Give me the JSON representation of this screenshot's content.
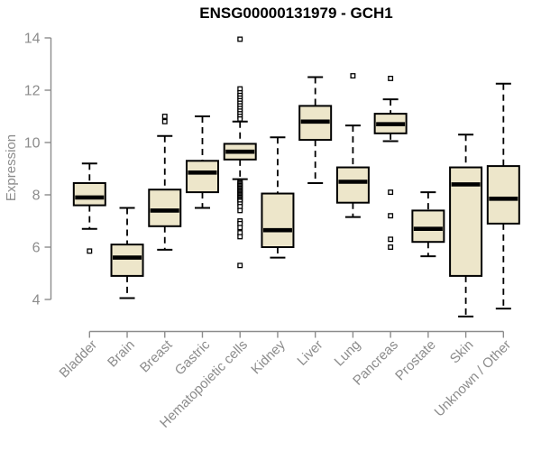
{
  "chart_data": {
    "type": "boxplot",
    "title": "ENSG00000131979 - GCH1",
    "ylabel": "Expression",
    "xlabel": "",
    "ylim": [
      4,
      14
    ],
    "yticks": [
      4,
      6,
      8,
      10,
      12,
      14
    ],
    "grid": false,
    "legend": null,
    "categories": [
      "Bladder",
      "Brain",
      "Breast",
      "Gastric",
      "Hematopoietic cells",
      "Kidney",
      "Liver",
      "Lung",
      "Pancreas",
      "Prostate",
      "Skin",
      "Unknown / Other"
    ],
    "boxes": [
      {
        "category": "Bladder",
        "low": 6.7,
        "q1": 7.6,
        "median": 7.9,
        "q3": 8.45,
        "high": 9.2,
        "outliers": [
          5.85
        ]
      },
      {
        "category": "Brain",
        "low": 4.05,
        "q1": 4.9,
        "median": 5.6,
        "q3": 6.1,
        "high": 7.5,
        "outliers": []
      },
      {
        "category": "Breast",
        "low": 5.9,
        "q1": 6.8,
        "median": 7.4,
        "q3": 8.2,
        "high": 10.25,
        "outliers": [
          11.0,
          10.8
        ]
      },
      {
        "category": "Gastric",
        "low": 7.5,
        "q1": 8.1,
        "median": 8.85,
        "q3": 9.3,
        "high": 11.0,
        "outliers": []
      },
      {
        "category": "Hematopoietic cells",
        "low": 8.6,
        "q1": 9.35,
        "median": 9.65,
        "q3": 9.95,
        "high": 10.8,
        "outliers": [
          13.95,
          12.05,
          11.9,
          11.8,
          11.7,
          11.6,
          11.5,
          11.4,
          11.3,
          11.2,
          11.1,
          11.0,
          10.9,
          8.5,
          8.45,
          8.4,
          8.35,
          8.3,
          8.25,
          8.2,
          8.15,
          8.1,
          8.05,
          8.0,
          7.95,
          7.9,
          7.85,
          7.8,
          7.75,
          7.65,
          7.55,
          7.4,
          7.0,
          6.9,
          6.75,
          6.55,
          6.4,
          5.3
        ]
      },
      {
        "category": "Kidney",
        "low": 5.6,
        "q1": 6.0,
        "median": 6.65,
        "q3": 8.05,
        "high": 10.2,
        "outliers": []
      },
      {
        "category": "Liver",
        "low": 8.45,
        "q1": 10.1,
        "median": 10.8,
        "q3": 11.4,
        "high": 12.5,
        "outliers": []
      },
      {
        "category": "Lung",
        "low": 7.15,
        "q1": 7.7,
        "median": 8.5,
        "q3": 9.05,
        "high": 10.65,
        "outliers": [
          12.55
        ]
      },
      {
        "category": "Pancreas",
        "low": 10.05,
        "q1": 10.35,
        "median": 10.7,
        "q3": 11.1,
        "high": 11.65,
        "outliers": [
          12.45,
          8.1,
          7.2,
          6.3,
          6.0
        ]
      },
      {
        "category": "Prostate",
        "low": 5.65,
        "q1": 6.2,
        "median": 6.7,
        "q3": 7.4,
        "high": 8.1,
        "outliers": []
      },
      {
        "category": "Skin",
        "low": 3.35,
        "q1": 4.9,
        "median": 8.4,
        "q3": 9.05,
        "high": 10.3,
        "outliers": []
      },
      {
        "category": "Unknown / Other",
        "low": 3.65,
        "q1": 6.9,
        "median": 7.85,
        "q3": 9.1,
        "high": 12.25,
        "outliers": []
      }
    ],
    "colors": {
      "box_fill": "#EDE6CA",
      "box_border": "#000000",
      "median": "#000000",
      "whisker": "#000000",
      "outlier_stroke": "#000000",
      "outlier_fill": "#FFFFFF",
      "axis": "#8C8C8C",
      "tick_label": "#8C8C8C",
      "title": "#000000",
      "background": "#FFFFFF"
    }
  }
}
